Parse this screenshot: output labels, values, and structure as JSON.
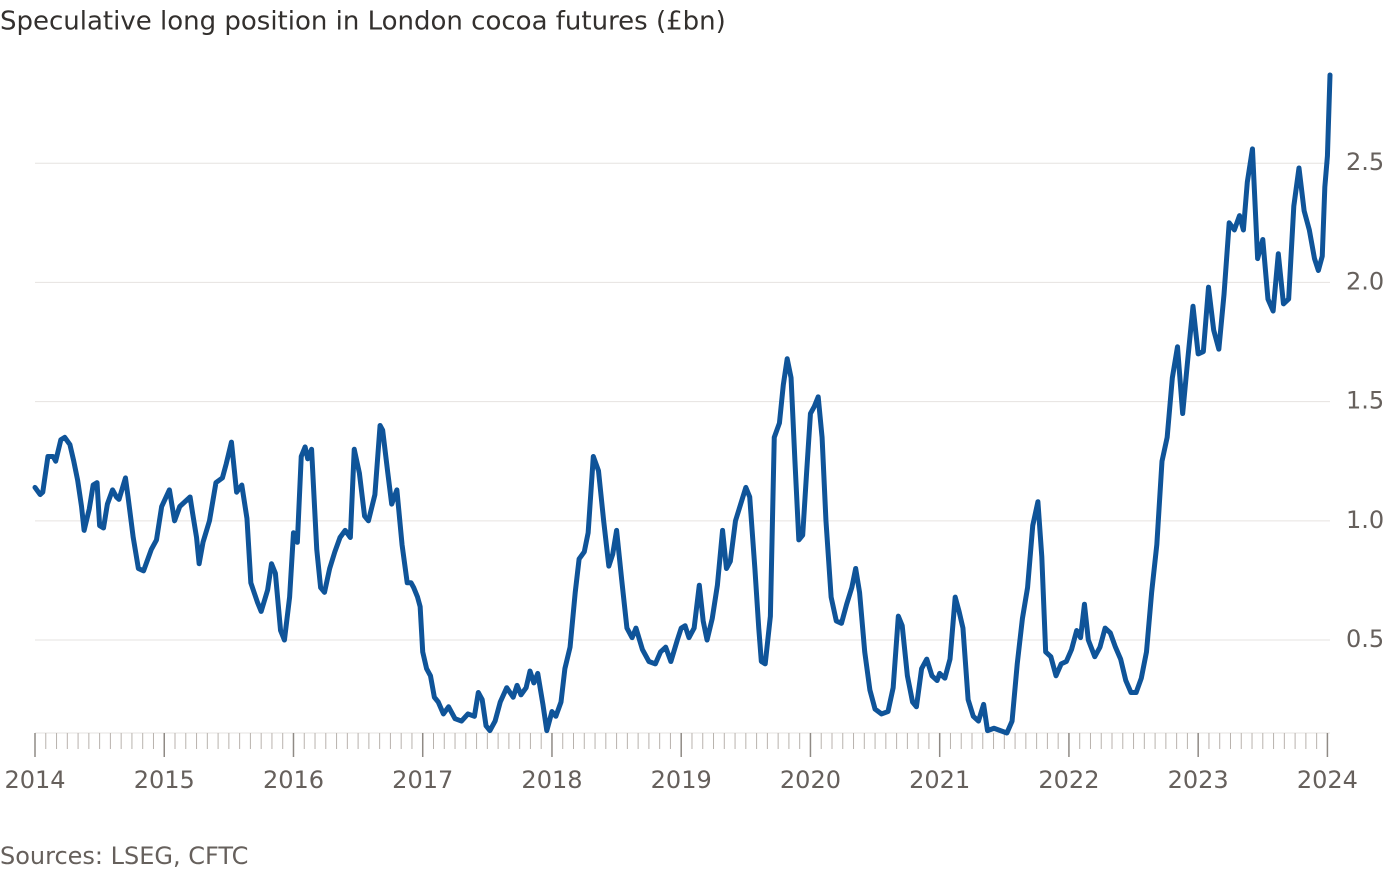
{
  "chart_data": {
    "type": "line",
    "title": "Speculative long position in London cocoa futures (£bn)",
    "source": "Sources: LSEG, CFTC",
    "x": [
      2014.0,
      2014.04,
      2014.06,
      2014.1,
      2014.14,
      2014.16,
      2014.2,
      2014.23,
      2014.27,
      2014.3,
      2014.33,
      2014.36,
      2014.38,
      2014.42,
      2014.45,
      2014.48,
      2014.5,
      2014.53,
      2014.56,
      2014.6,
      2014.63,
      2014.65,
      2014.7,
      2014.72,
      2014.76,
      2014.8,
      2014.84,
      2014.9,
      2014.94,
      2014.98,
      2015.04,
      2015.08,
      2015.12,
      2015.16,
      2015.2,
      2015.22,
      2015.25,
      2015.27,
      2015.3,
      2015.35,
      2015.4,
      2015.45,
      2015.48,
      2015.52,
      2015.56,
      2015.6,
      2015.64,
      2015.67,
      2015.72,
      2015.75,
      2015.8,
      2015.83,
      2015.86,
      2015.9,
      2015.93,
      2015.97,
      2016.0,
      2016.03,
      2016.06,
      2016.09,
      2016.11,
      2016.14,
      2016.18,
      2016.21,
      2016.24,
      2016.28,
      2016.32,
      2016.36,
      2016.4,
      2016.44,
      2016.47,
      2016.51,
      2016.55,
      2016.58,
      2016.63,
      2016.67,
      2016.69,
      2016.73,
      2016.76,
      2016.8,
      2016.84,
      2016.88,
      2016.91,
      2016.93,
      2016.96,
      2016.98,
      2017.0,
      2017.03,
      2017.06,
      2017.09,
      2017.12,
      2017.16,
      2017.2,
      2017.25,
      2017.3,
      2017.35,
      2017.4,
      2017.43,
      2017.46,
      2017.49,
      2017.52,
      2017.56,
      2017.6,
      2017.65,
      2017.7,
      2017.73,
      2017.76,
      2017.8,
      2017.83,
      2017.86,
      2017.89,
      2017.93,
      2017.96,
      2018.0,
      2018.03,
      2018.07,
      2018.1,
      2018.14,
      2018.18,
      2018.21,
      2018.25,
      2018.28,
      2018.32,
      2018.36,
      2018.4,
      2018.44,
      2018.47,
      2018.5,
      2018.54,
      2018.58,
      2018.62,
      2018.65,
      2018.7,
      2018.75,
      2018.8,
      2018.84,
      2018.88,
      2018.92,
      2018.97,
      2019.0,
      2019.03,
      2019.06,
      2019.1,
      2019.14,
      2019.17,
      2019.2,
      2019.24,
      2019.28,
      2019.32,
      2019.35,
      2019.38,
      2019.42,
      2019.46,
      2019.5,
      2019.53,
      2019.57,
      2019.6,
      2019.62,
      2019.65,
      2019.69,
      2019.72,
      2019.76,
      2019.79,
      2019.82,
      2019.85,
      2019.88,
      2019.91,
      2019.94,
      2019.97,
      2020.0,
      2020.03,
      2020.06,
      2020.09,
      2020.12,
      2020.16,
      2020.2,
      2020.24,
      2020.28,
      2020.32,
      2020.35,
      2020.38,
      2020.42,
      2020.46,
      2020.5,
      2020.55,
      2020.6,
      2020.64,
      2020.68,
      2020.71,
      2020.75,
      2020.79,
      2020.82,
      2020.86,
      2020.9,
      2020.94,
      2020.98,
      2021.0,
      2021.04,
      2021.08,
      2021.12,
      2021.15,
      2021.18,
      2021.22,
      2021.26,
      2021.3,
      2021.34,
      2021.37,
      2021.42,
      2021.47,
      2021.52,
      2021.56,
      2021.6,
      2021.64,
      2021.68,
      2021.72,
      2021.76,
      2021.79,
      2021.82,
      2021.86,
      2021.9,
      2021.94,
      2021.98,
      2022.02,
      2022.06,
      2022.09,
      2022.12,
      2022.15,
      2022.2,
      2022.24,
      2022.28,
      2022.32,
      2022.36,
      2022.4,
      2022.44,
      2022.48,
      2022.52,
      2022.56,
      2022.6,
      2022.64,
      2022.68,
      2022.72,
      2022.76,
      2022.8,
      2022.84,
      2022.88,
      2022.92,
      2022.96,
      2023.0,
      2023.04,
      2023.08,
      2023.12,
      2023.16,
      2023.2,
      2023.24,
      2023.28,
      2023.32,
      2023.35,
      2023.38,
      2023.42,
      2023.46,
      2023.5,
      2023.54,
      2023.58,
      2023.62,
      2023.66,
      2023.7,
      2023.74,
      2023.78,
      2023.82,
      2023.86,
      2023.9,
      2023.93,
      2023.96,
      2023.98,
      2024.0,
      2024.02
    ],
    "series": [
      {
        "color": "#0f5499",
        "values": [
          1.14,
          1.11,
          1.12,
          1.27,
          1.27,
          1.25,
          1.34,
          1.35,
          1.32,
          1.25,
          1.17,
          1.06,
          0.96,
          1.05,
          1.15,
          1.16,
          0.98,
          0.97,
          1.07,
          1.13,
          1.1,
          1.09,
          1.18,
          1.1,
          0.93,
          0.8,
          0.79,
          0.88,
          0.92,
          1.06,
          1.13,
          1.0,
          1.06,
          1.08,
          1.1,
          1.03,
          0.93,
          0.82,
          0.91,
          1.0,
          1.16,
          1.18,
          1.24,
          1.33,
          1.12,
          1.15,
          1.01,
          0.74,
          0.66,
          0.62,
          0.71,
          0.82,
          0.78,
          0.54,
          0.5,
          0.68,
          0.95,
          0.91,
          1.27,
          1.31,
          1.26,
          1.3,
          0.88,
          0.72,
          0.7,
          0.8,
          0.87,
          0.93,
          0.96,
          0.93,
          1.3,
          1.2,
          1.02,
          1.0,
          1.11,
          1.4,
          1.38,
          1.2,
          1.07,
          1.13,
          0.9,
          0.74,
          0.74,
          0.72,
          0.68,
          0.64,
          0.45,
          0.38,
          0.35,
          0.26,
          0.24,
          0.19,
          0.22,
          0.17,
          0.16,
          0.19,
          0.18,
          0.28,
          0.25,
          0.14,
          0.12,
          0.16,
          0.24,
          0.3,
          0.26,
          0.31,
          0.27,
          0.3,
          0.37,
          0.32,
          0.36,
          0.23,
          0.12,
          0.2,
          0.18,
          0.24,
          0.38,
          0.47,
          0.7,
          0.84,
          0.87,
          0.95,
          1.27,
          1.21,
          1.0,
          0.81,
          0.86,
          0.96,
          0.75,
          0.55,
          0.51,
          0.55,
          0.46,
          0.41,
          0.4,
          0.45,
          0.47,
          0.41,
          0.5,
          0.55,
          0.56,
          0.51,
          0.55,
          0.73,
          0.58,
          0.5,
          0.59,
          0.73,
          0.96,
          0.8,
          0.83,
          1.0,
          1.07,
          1.14,
          1.1,
          0.8,
          0.55,
          0.41,
          0.4,
          0.6,
          1.35,
          1.41,
          1.57,
          1.68,
          1.6,
          1.25,
          0.92,
          0.94,
          1.2,
          1.45,
          1.48,
          1.52,
          1.35,
          1.0,
          0.68,
          0.58,
          0.57,
          0.65,
          0.72,
          0.8,
          0.7,
          0.45,
          0.29,
          0.21,
          0.19,
          0.2,
          0.3,
          0.6,
          0.56,
          0.35,
          0.24,
          0.22,
          0.38,
          0.42,
          0.35,
          0.33,
          0.36,
          0.34,
          0.42,
          0.68,
          0.62,
          0.55,
          0.25,
          0.18,
          0.16,
          0.23,
          0.12,
          0.13,
          0.12,
          0.11,
          0.16,
          0.4,
          0.59,
          0.72,
          0.98,
          1.08,
          0.85,
          0.45,
          0.43,
          0.35,
          0.4,
          0.41,
          0.46,
          0.54,
          0.51,
          0.65,
          0.5,
          0.43,
          0.47,
          0.55,
          0.53,
          0.47,
          0.42,
          0.33,
          0.28,
          0.28,
          0.34,
          0.45,
          0.7,
          0.9,
          1.25,
          1.35,
          1.6,
          1.73,
          1.45,
          1.68,
          1.9,
          1.7,
          1.71,
          1.98,
          1.8,
          1.72,
          1.95,
          2.25,
          2.22,
          2.28,
          2.22,
          2.42,
          2.56,
          2.1,
          2.18,
          1.93,
          1.88,
          2.12,
          1.91,
          1.93,
          2.32,
          2.48,
          2.3,
          2.22,
          2.1,
          2.05,
          2.11,
          2.4,
          2.53,
          2.87
        ]
      }
    ],
    "xlim": [
      2014,
      2024.02
    ],
    "xticks": [
      2014,
      2015,
      2016,
      2017,
      2018,
      2019,
      2020,
      2021,
      2022,
      2023,
      2024
    ],
    "ylim": [
      0.11,
      2.87
    ],
    "yticks": [
      0.5,
      {
        "value": 1,
        "label": "1.0"
      },
      1.5,
      {
        "value": 2,
        "label": "2.0"
      },
      2.5
    ],
    "grid": true
  }
}
